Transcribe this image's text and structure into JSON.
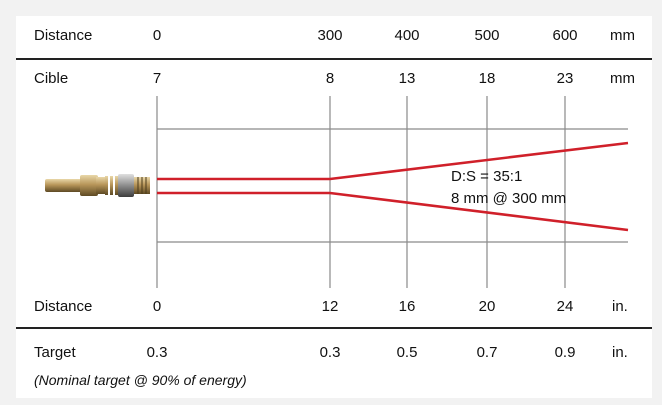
{
  "rows": {
    "distance_mm": {
      "label": "Distance",
      "values": [
        "0",
        "300",
        "400",
        "500",
        "600"
      ],
      "unit": "mm"
    },
    "cible_mm": {
      "label": "Cible",
      "values": [
        "7",
        "8",
        "13",
        "18",
        "23"
      ],
      "unit": "mm"
    },
    "distance_in": {
      "label": "Distance",
      "values": [
        "0",
        "12",
        "16",
        "20",
        "24"
      ],
      "unit": "in."
    },
    "target_in": {
      "label": "Target",
      "values": [
        "0.3",
        "0.3",
        "0.5",
        "0.7",
        "0.9"
      ],
      "unit": "in."
    }
  },
  "annotation": {
    "ratio": "D:S = 35:1",
    "spot": "8 mm @ 300 mm"
  },
  "footnote": "(Nominal target @ 90% of energy)",
  "colors": {
    "beam": "#d0202a",
    "grid": "#8a8a8a",
    "rule": "#222222"
  },
  "icons": {
    "sensor": "infrared-sensor-probe"
  }
}
